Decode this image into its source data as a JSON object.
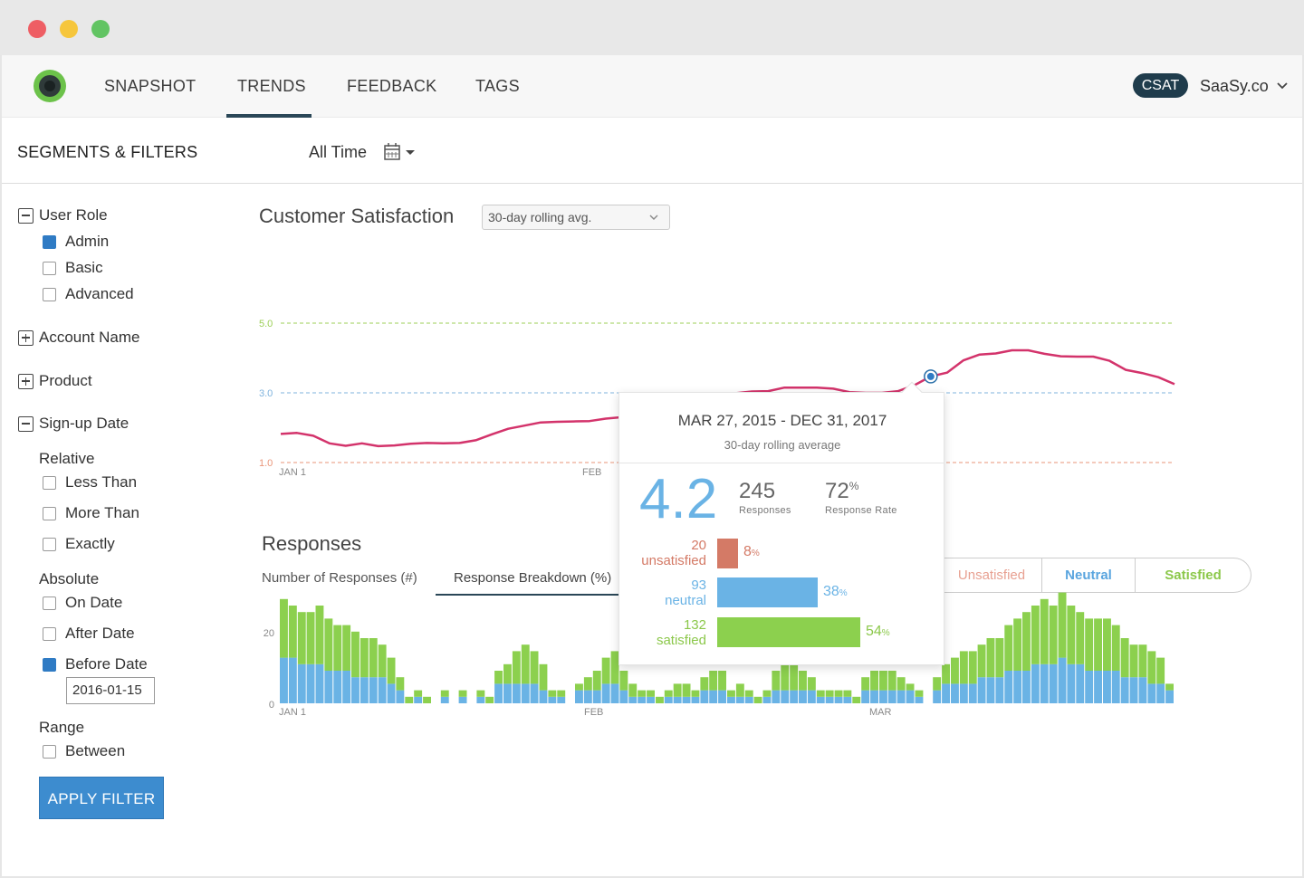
{
  "nav": {
    "items": [
      "SNAPSHOT",
      "TRENDS",
      "FEEDBACK",
      "TAGS"
    ],
    "active": "TRENDS",
    "badge": "CSAT",
    "company": "SaaSy.co"
  },
  "filterbar": {
    "title": "SEGMENTS & FILTERS",
    "date_range": "All Time"
  },
  "sidebar": {
    "user_role": {
      "label": "User Role",
      "options": [
        {
          "label": "Admin",
          "checked": true
        },
        {
          "label": "Basic",
          "checked": false
        },
        {
          "label": "Advanced",
          "checked": false
        }
      ]
    },
    "account_name": "Account Name",
    "product": "Product",
    "signup_date": {
      "label": "Sign-up Date",
      "relative_label": "Relative",
      "relative": [
        {
          "label": "Less Than",
          "checked": false
        },
        {
          "label": "More Than",
          "checked": false
        },
        {
          "label": "Exactly",
          "checked": false
        }
      ],
      "absolute_label": "Absolute",
      "absolute": [
        {
          "label": "On Date",
          "checked": false
        },
        {
          "label": "After Date",
          "checked": false
        },
        {
          "label": "Before Date",
          "checked": true
        }
      ],
      "before_date_value": "2016-01-15",
      "range_label": "Range",
      "range": [
        {
          "label": "Between",
          "checked": false
        }
      ]
    },
    "apply_label": "APPLY FILTER"
  },
  "csat": {
    "title": "Customer Satisfaction",
    "select_value": "30-day rolling avg."
  },
  "responses": {
    "title": "Responses",
    "tabs": [
      "Number of Responses (#)",
      "Response Breakdown (%)"
    ],
    "active_tab": 1,
    "segments": [
      "Unsatisfied",
      "Neutral",
      "Satisfied"
    ]
  },
  "tooltip": {
    "range": "MAR 27, 2015 - DEC 31, 2017",
    "subtitle": "30-day rolling average",
    "score": "4.2",
    "responses": "245",
    "responses_label": "Responses",
    "response_rate": "72",
    "response_rate_label": "Response Rate",
    "unsatisfied_count": "20",
    "unsatisfied_label": "unsatisfied",
    "unsatisfied_pct": 8,
    "neutral_count": "93",
    "neutral_label": "neutral",
    "neutral_pct": 38,
    "satisfied_count": "132",
    "satisfied_label": "satisfied",
    "satisfied_pct": 54
  },
  "colors": {
    "accent_dark": "#1f3c4c",
    "button_blue": "#3d8ccf",
    "line": "#d3336b",
    "unsatisfied": "#d47a66",
    "neutral": "#6ab3e5",
    "satisfied": "#8cd04e"
  },
  "chart_data": [
    {
      "type": "line",
      "title": "Customer Satisfaction",
      "x_ticks": [
        "JAN 1",
        "FEB",
        "MAR"
      ],
      "y_ticks": [
        1.0,
        3.0,
        5.0
      ],
      "ylim": [
        1.0,
        5.0
      ],
      "reference_lines": [
        {
          "y": 5.0,
          "color": "#9ccf57"
        },
        {
          "y": 3.0,
          "color": "#7fb3dd"
        },
        {
          "y": 1.0,
          "color": "#e9967a"
        }
      ],
      "series": [
        {
          "values": [
            1.82,
            1.85,
            1.77,
            1.55,
            1.48,
            1.55,
            1.47,
            1.49,
            1.54,
            1.56,
            1.55,
            1.56,
            1.64,
            1.81,
            1.97,
            2.06,
            2.15,
            2.17,
            2.18,
            2.19,
            2.26,
            2.3,
            2.38,
            2.55,
            2.66,
            2.78,
            2.91,
            2.98,
            2.99,
            3.04,
            3.05,
            3.15,
            3.15,
            3.15,
            3.12,
            3.02,
            3.0,
            3.0,
            3.05,
            3.22,
            3.47,
            3.58,
            3.93,
            4.1,
            4.13,
            4.22,
            4.22,
            4.12,
            4.05,
            4.04,
            4.04,
            3.92,
            3.66,
            3.57,
            3.45,
            3.25
          ]
        }
      ],
      "highlight": {
        "index": 40,
        "value": 3.47
      }
    },
    {
      "type": "bar",
      "title": "Responses",
      "stacked": true,
      "x_ticks": [
        "JAN 1",
        "FEB",
        "MAR"
      ],
      "y_ticks": [
        0,
        20
      ],
      "ylim": [
        0,
        20
      ],
      "series": [
        {
          "name": "Neutral",
          "values": [
            7,
            7,
            6,
            6,
            6,
            5,
            5,
            5,
            4,
            4,
            4,
            4,
            3,
            2,
            0,
            1,
            0,
            0,
            1,
            0,
            1,
            0,
            1,
            0,
            3,
            3,
            3,
            3,
            3,
            2,
            1,
            1,
            0,
            2,
            2,
            2,
            3,
            3,
            2,
            1,
            1,
            1,
            0,
            1,
            1,
            1,
            1,
            2,
            2,
            2,
            1,
            1,
            1,
            0,
            1,
            2,
            2,
            2,
            2,
            2,
            1,
            1,
            1,
            1,
            0,
            2,
            2,
            2,
            2,
            2,
            2,
            1,
            0,
            2,
            3,
            3,
            3,
            3,
            4,
            4,
            4,
            5,
            5,
            5,
            6,
            6,
            6,
            7,
            6,
            6,
            5,
            5,
            5,
            5,
            4,
            4,
            4,
            3,
            3,
            2
          ]
        },
        {
          "name": "Satisfied",
          "values": [
            9,
            8,
            8,
            8,
            9,
            8,
            7,
            7,
            7,
            6,
            6,
            5,
            4,
            2,
            1,
            1,
            1,
            0,
            1,
            0,
            1,
            0,
            1,
            1,
            2,
            3,
            5,
            6,
            5,
            4,
            1,
            1,
            0,
            1,
            2,
            3,
            4,
            5,
            3,
            2,
            1,
            1,
            1,
            1,
            2,
            2,
            1,
            2,
            3,
            3,
            1,
            2,
            1,
            1,
            1,
            3,
            4,
            4,
            3,
            2,
            1,
            1,
            1,
            1,
            1,
            2,
            3,
            3,
            3,
            2,
            1,
            1,
            0,
            2,
            3,
            4,
            5,
            5,
            5,
            6,
            6,
            7,
            8,
            9,
            9,
            10,
            9,
            10,
            9,
            8,
            8,
            8,
            8,
            7,
            6,
            5,
            5,
            5,
            4,
            1
          ]
        }
      ]
    }
  ]
}
